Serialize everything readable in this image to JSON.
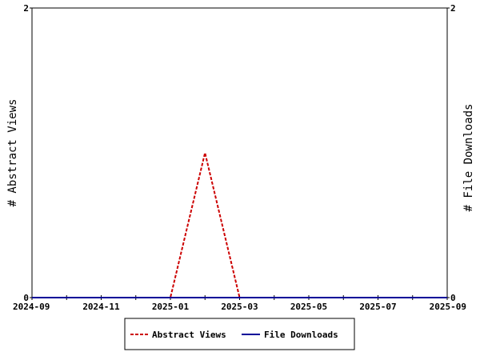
{
  "chart_data": {
    "type": "line",
    "title": "",
    "x_ticks": [
      "2024-09",
      "2024-11",
      "2025-01",
      "2025-03",
      "2025-05",
      "2025-07",
      "2025-09"
    ],
    "xlim": [
      "2024-09",
      "2025-09"
    ],
    "ylabel_left": "# Abstract Views",
    "ylabel_right": "# File Downloads",
    "y_left_ticks": [
      "0",
      "2"
    ],
    "y_right_ticks": [
      "0",
      "2"
    ],
    "ylim_left": [
      0,
      2
    ],
    "ylim_right": [
      0,
      2
    ],
    "grid": false,
    "legend_position": "bottom-center",
    "series": [
      {
        "name": "Abstract Views",
        "axis": "left",
        "color": "#cc0000",
        "style": "dashed",
        "points": [
          {
            "x": "2024-09",
            "y": 0
          },
          {
            "x": "2024-10",
            "y": 0
          },
          {
            "x": "2024-11",
            "y": 0
          },
          {
            "x": "2024-12",
            "y": 0
          },
          {
            "x": "2025-01",
            "y": 0
          },
          {
            "x": "2025-02",
            "y": 1
          },
          {
            "x": "2025-03",
            "y": 0
          },
          {
            "x": "2025-04",
            "y": 0
          },
          {
            "x": "2025-05",
            "y": 0
          },
          {
            "x": "2025-06",
            "y": 0
          },
          {
            "x": "2025-07",
            "y": 0
          },
          {
            "x": "2025-08",
            "y": 0
          },
          {
            "x": "2025-09",
            "y": 0
          }
        ]
      },
      {
        "name": "File Downloads",
        "axis": "right",
        "color": "#000099",
        "style": "solid",
        "points": [
          {
            "x": "2024-09",
            "y": 0
          },
          {
            "x": "2024-10",
            "y": 0
          },
          {
            "x": "2024-11",
            "y": 0
          },
          {
            "x": "2024-12",
            "y": 0
          },
          {
            "x": "2025-01",
            "y": 0
          },
          {
            "x": "2025-02",
            "y": 0
          },
          {
            "x": "2025-03",
            "y": 0
          },
          {
            "x": "2025-04",
            "y": 0
          },
          {
            "x": "2025-05",
            "y": 0
          },
          {
            "x": "2025-06",
            "y": 0
          },
          {
            "x": "2025-07",
            "y": 0
          },
          {
            "x": "2025-08",
            "y": 0
          },
          {
            "x": "2025-09",
            "y": 0
          }
        ]
      }
    ]
  }
}
